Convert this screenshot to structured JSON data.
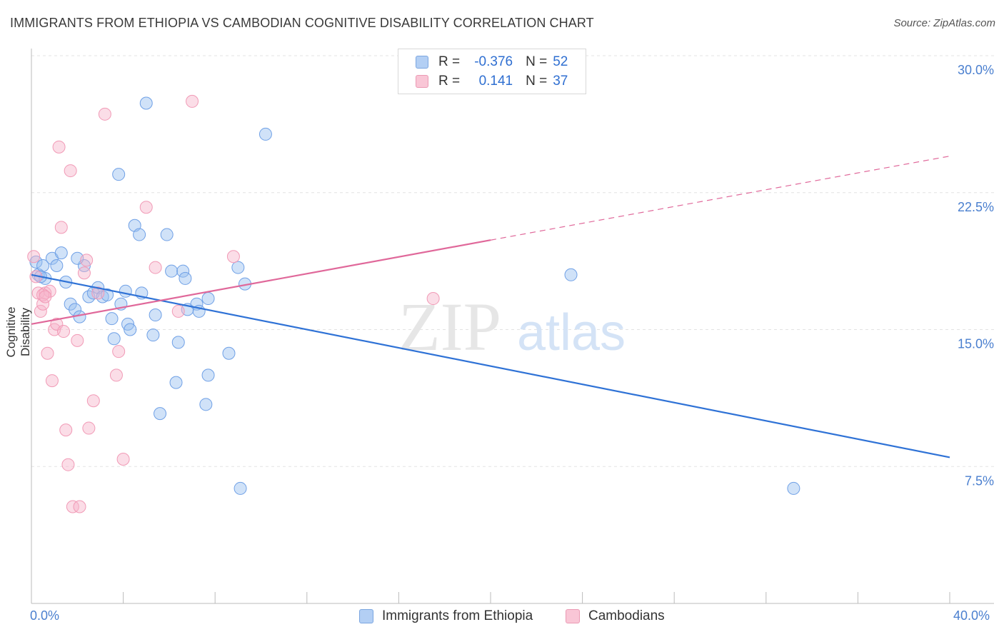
{
  "title": "IMMIGRANTS FROM ETHIOPIA VS CAMBODIAN COGNITIVE DISABILITY CORRELATION CHART",
  "source": "Source: ZipAtlas.com",
  "watermark": {
    "zip": "ZIP",
    "atlas": "atlas"
  },
  "legend": {
    "rows": [
      {
        "r_label": "R =",
        "r_value": "-0.376",
        "n_label": "N =",
        "n_value": "52",
        "color": "#b3cff4"
      },
      {
        "r_label": "R =",
        "r_value": "0.141",
        "n_label": "N =",
        "n_value": "37",
        "color": "#f9c6d6"
      }
    ]
  },
  "bottom_legend": [
    "Immigrants from Ethiopia",
    "Cambodians"
  ],
  "chart_data": {
    "type": "scatter",
    "title": "IMMIGRANTS FROM ETHIOPIA VS CAMBODIAN COGNITIVE DISABILITY CORRELATION CHART",
    "xlabel": "",
    "ylabel": "Cognitive Disability",
    "xlim": [
      0,
      40
    ],
    "ylim": [
      0,
      30
    ],
    "x_tick_labels": [
      "0.0%",
      "40.0%"
    ],
    "y_ticks": [
      7.5,
      15.0,
      22.5,
      30.0
    ],
    "y_tick_labels": [
      "7.5%",
      "15.0%",
      "22.5%",
      "30.0%"
    ],
    "grid": true,
    "legend_position": "top-center",
    "colors": {
      "blue": "#6fa0e6",
      "pink": "#f19ab6",
      "blue_line": "#2f72d6",
      "pink_line": "#e0689a"
    },
    "series": [
      {
        "name": "Immigrants from Ethiopia",
        "color": "#6fa0e6",
        "points": [
          [
            0.2,
            18.7
          ],
          [
            0.3,
            18.0
          ],
          [
            0.5,
            18.5
          ],
          [
            0.6,
            17.8
          ],
          [
            0.9,
            18.9
          ],
          [
            1.1,
            18.5
          ],
          [
            1.3,
            19.2
          ],
          [
            1.5,
            17.6
          ],
          [
            1.7,
            16.4
          ],
          [
            1.9,
            16.1
          ],
          [
            2.1,
            15.7
          ],
          [
            2.3,
            18.5
          ],
          [
            2.5,
            16.8
          ],
          [
            2.7,
            17.0
          ],
          [
            2.9,
            17.3
          ],
          [
            3.1,
            16.8
          ],
          [
            3.3,
            16.9
          ],
          [
            3.5,
            15.6
          ],
          [
            3.6,
            14.5
          ],
          [
            3.8,
            23.5
          ],
          [
            3.9,
            16.4
          ],
          [
            4.1,
            17.1
          ],
          [
            4.2,
            15.3
          ],
          [
            4.3,
            15.0
          ],
          [
            4.5,
            20.7
          ],
          [
            4.7,
            20.2
          ],
          [
            4.8,
            17.0
          ],
          [
            5.0,
            27.4
          ],
          [
            5.3,
            14.7
          ],
          [
            5.4,
            15.8
          ],
          [
            5.6,
            10.4
          ],
          [
            5.9,
            20.2
          ],
          [
            6.1,
            18.2
          ],
          [
            6.3,
            12.1
          ],
          [
            6.4,
            14.3
          ],
          [
            6.6,
            18.2
          ],
          [
            6.7,
            17.8
          ],
          [
            6.8,
            16.1
          ],
          [
            7.2,
            16.4
          ],
          [
            7.3,
            16.0
          ],
          [
            7.6,
            10.9
          ],
          [
            7.7,
            16.7
          ],
          [
            7.7,
            12.5
          ],
          [
            8.6,
            13.7
          ],
          [
            9.0,
            18.4
          ],
          [
            9.1,
            6.3
          ],
          [
            9.3,
            17.5
          ],
          [
            10.2,
            25.7
          ],
          [
            23.5,
            18.0
          ],
          [
            33.2,
            6.3
          ],
          [
            0.4,
            17.9
          ],
          [
            2.0,
            18.9
          ]
        ]
      },
      {
        "name": "Cambodians",
        "color": "#f19ab6",
        "points": [
          [
            0.1,
            19.0
          ],
          [
            0.2,
            17.9
          ],
          [
            0.3,
            17.0
          ],
          [
            0.4,
            16.0
          ],
          [
            0.5,
            16.4
          ],
          [
            0.6,
            17.0
          ],
          [
            0.7,
            13.7
          ],
          [
            0.8,
            17.1
          ],
          [
            0.9,
            12.2
          ],
          [
            1.0,
            15.0
          ],
          [
            1.1,
            15.3
          ],
          [
            1.2,
            25.0
          ],
          [
            1.3,
            20.6
          ],
          [
            1.4,
            14.9
          ],
          [
            1.5,
            9.5
          ],
          [
            1.6,
            7.6
          ],
          [
            1.7,
            23.7
          ],
          [
            1.8,
            5.3
          ],
          [
            2.0,
            14.4
          ],
          [
            2.1,
            5.3
          ],
          [
            2.3,
            18.1
          ],
          [
            2.4,
            18.8
          ],
          [
            2.5,
            9.6
          ],
          [
            2.7,
            11.1
          ],
          [
            2.9,
            17.0
          ],
          [
            3.2,
            26.8
          ],
          [
            3.7,
            12.5
          ],
          [
            3.8,
            13.8
          ],
          [
            4.0,
            7.9
          ],
          [
            5.0,
            21.7
          ],
          [
            5.4,
            18.4
          ],
          [
            6.4,
            16.0
          ],
          [
            7.0,
            27.5
          ],
          [
            8.8,
            19.0
          ],
          [
            17.5,
            16.7
          ],
          [
            0.5,
            16.9
          ],
          [
            0.6,
            16.8
          ]
        ]
      }
    ],
    "trend_lines": [
      {
        "series": "Immigrants from Ethiopia",
        "x": [
          0,
          40
        ],
        "y": [
          18.0,
          8.0
        ],
        "style": "solid"
      },
      {
        "series": "Cambodians",
        "x": [
          0,
          20
        ],
        "y": [
          15.3,
          19.9
        ],
        "style": "solid"
      },
      {
        "series": "Cambodians",
        "x": [
          20,
          40
        ],
        "y": [
          19.9,
          24.5
        ],
        "style": "dashed"
      }
    ]
  }
}
